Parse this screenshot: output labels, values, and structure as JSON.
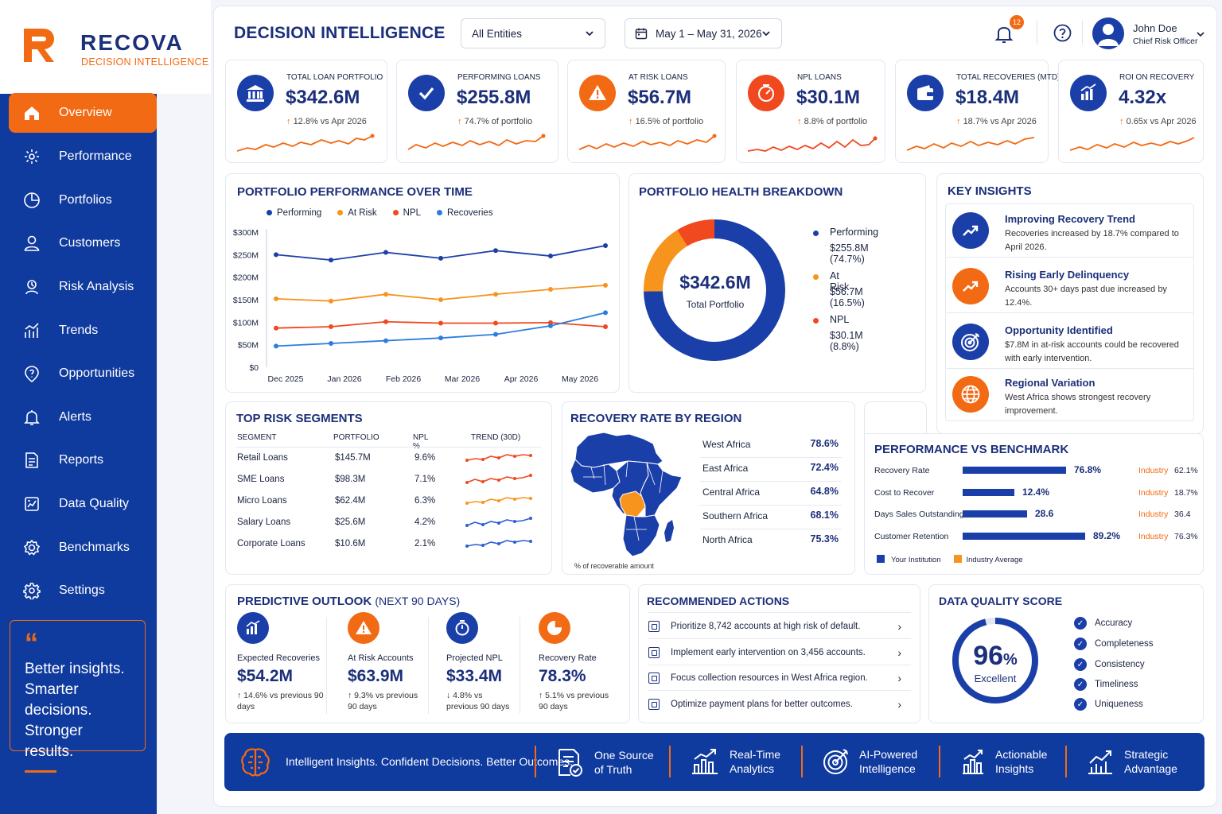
{
  "brand": {
    "name": "RECOVA",
    "subtitle": "DECISION INTELLIGENCE"
  },
  "nav": [
    {
      "label": "Overview",
      "icon": "home-icon",
      "active": true
    },
    {
      "label": "Performance",
      "icon": "performance-icon"
    },
    {
      "label": "Portfolios",
      "icon": "pie-icon"
    },
    {
      "label": "Customers",
      "icon": "user-icon"
    },
    {
      "label": "Risk Analysis",
      "icon": "risk-icon"
    },
    {
      "label": "Trends",
      "icon": "trends-icon"
    },
    {
      "label": "Opportunities",
      "icon": "opportunity-icon"
    },
    {
      "label": "Alerts",
      "icon": "bell-icon"
    },
    {
      "label": "Reports",
      "icon": "report-icon"
    },
    {
      "label": "Data Quality",
      "icon": "data-quality-icon"
    },
    {
      "label": "Benchmarks",
      "icon": "benchmark-icon"
    },
    {
      "label": "Settings",
      "icon": "gear-icon"
    }
  ],
  "quote": {
    "mark": "“",
    "text": [
      "Better insights.",
      "Smarter decisions.",
      "Stronger results."
    ]
  },
  "header": {
    "title": "DECISION INTELLIGENCE",
    "entity_select": "All Entities",
    "date_range": "May 1 – May 31, 2026",
    "notifications": "12",
    "user_name": "John Doe",
    "user_role": "Chief Risk Officer"
  },
  "kpis": [
    {
      "label": "TOTAL LOAN PORTFOLIO",
      "value": "$342.6M",
      "change": "12.8% vs Apr 2026",
      "icon": "bank-icon",
      "color": "#1b3fa8"
    },
    {
      "label": "PERFORMING LOANS",
      "value": "$255.8M",
      "change": "74.7% of portfolio",
      "icon": "check-icon",
      "color": "#1b3fa8"
    },
    {
      "label": "AT RISK LOANS",
      "value": "$56.7M",
      "change": "16.5% of portfolio",
      "icon": "warning-icon",
      "color": "#f26a14"
    },
    {
      "label": "NPL LOANS",
      "value": "$30.1M",
      "change": "8.8% of portfolio",
      "icon": "gauge-icon",
      "color": "#f0481f"
    },
    {
      "label": "TOTAL RECOVERIES (MTD)",
      "value": "$18.4M",
      "change": "18.7% vs Apr 2026",
      "icon": "wallet-icon",
      "color": "#1b3fa8"
    },
    {
      "label": "ROI ON RECOVERY",
      "value": "4.32x",
      "change": "0.65x vs Apr 2026",
      "icon": "bar-chart-icon",
      "color": "#1b3fa8"
    }
  ],
  "performance": {
    "title": "PORTFOLIO PERFORMANCE OVER TIME",
    "legend": [
      "Performing",
      "At Risk",
      "NPL",
      "Recoveries"
    ]
  },
  "chart_data": {
    "type": "line",
    "categories": [
      "Dec 2025",
      "Jan 2026",
      "Feb 2026",
      "Mar 2026",
      "Apr 2026",
      "May 2026"
    ],
    "x": [
      "Dec 2025",
      "Dec/Jan 2026",
      "Jan/Feb 2026",
      "Feb/Mar 2026",
      "Mar/Apr 2026",
      "Apr/May 2026",
      "May 2026"
    ],
    "series": [
      {
        "name": "Performing",
        "color": "#1b3fa8",
        "values": [
          250,
          238,
          255,
          242,
          259,
          247,
          270
        ]
      },
      {
        "name": "At Risk",
        "color": "#f7941d",
        "values": [
          152,
          147,
          162,
          150,
          162,
          173,
          182
        ]
      },
      {
        "name": "NPL",
        "color": "#f0481f",
        "values": [
          87,
          90,
          101,
          98,
          98,
          99,
          90
        ]
      },
      {
        "name": "Recoveries",
        "color": "#2b7de0",
        "values": [
          47,
          53,
          59,
          65,
          73,
          92,
          121
        ]
      }
    ],
    "yticks": [
      "$0",
      "$50M",
      "$100M",
      "$150M",
      "$200M",
      "$250M",
      "$300M"
    ],
    "ylim": [
      0,
      300
    ]
  },
  "health": {
    "title": "PORTFOLIO HEALTH BREAKDOWN",
    "center_value": "$342.6M",
    "center_label": "Total Portfolio",
    "segments": [
      {
        "name": "Performing",
        "value": "$255.8M (74.7%)",
        "pct": 74.7,
        "color": "#1b3fa8"
      },
      {
        "name": "At Risk",
        "value": "$56.7M (16.5%)",
        "pct": 16.5,
        "color": "#f7941d"
      },
      {
        "name": "NPL",
        "value": "$30.1M (8.8%)",
        "pct": 8.8,
        "color": "#f0481f"
      }
    ]
  },
  "insights": {
    "title": "KEY INSIGHTS",
    "items": [
      {
        "title": "Improving Recovery Trend",
        "desc": "Recoveries increased by 18.7% compared to April 2026.",
        "icon": "trend-up-icon",
        "color": "#1b3fa8"
      },
      {
        "title": "Rising Early Delinquency",
        "desc": "Accounts 30+ days past due increased by 12.4%.",
        "icon": "trend-up-icon",
        "color": "#f26a14"
      },
      {
        "title": "Opportunity Identified",
        "desc": "$7.8M in at-risk accounts could be recovered with early intervention.",
        "icon": "target-icon",
        "color": "#1b3fa8"
      },
      {
        "title": "Regional Variation",
        "desc": "West Africa shows strongest recovery improvement.",
        "icon": "globe-icon",
        "color": "#f26a14"
      }
    ]
  },
  "segments": {
    "title": "TOP RISK SEGMENTS",
    "headers": [
      "SEGMENT",
      "PORTFOLIO",
      "NPL %",
      "TREND (30D)"
    ],
    "rows": [
      {
        "name": "Retail Loans",
        "portfolio": "$145.7M",
        "npl": "9.6%",
        "color": "#f0481f"
      },
      {
        "name": "SME Loans",
        "portfolio": "$98.3M",
        "npl": "7.1%",
        "color": "#f0481f"
      },
      {
        "name": "Micro Loans",
        "portfolio": "$62.4M",
        "npl": "6.3%",
        "color": "#f7941d"
      },
      {
        "name": "Salary Loans",
        "portfolio": "$25.6M",
        "npl": "4.2%",
        "color": "#2b5fd0"
      },
      {
        "name": "Corporate Loans",
        "portfolio": "$10.6M",
        "npl": "2.1%",
        "color": "#2b5fd0"
      }
    ]
  },
  "recovery": {
    "title": "RECOVERY RATE BY REGION",
    "note": "% of recoverable amount",
    "regions": [
      {
        "name": "West Africa",
        "value": "78.6%"
      },
      {
        "name": "East Africa",
        "value": "72.4%"
      },
      {
        "name": "Central Africa",
        "value": "64.8%"
      },
      {
        "name": "Southern Africa",
        "value": "68.1%"
      },
      {
        "name": "North Africa",
        "value": "75.3%"
      }
    ]
  },
  "benchmark": {
    "title": "PERFORMANCE VS BENCHMARK",
    "industry_label": "Industry",
    "rows": [
      {
        "name": "Recovery Rate",
        "value": "76.8%",
        "industry": "62.1%",
        "fill": 0.8
      },
      {
        "name": "Cost to Recover",
        "value": "12.4%",
        "industry": "18.7%",
        "fill": 0.4
      },
      {
        "name": "Days Sales Outstanding",
        "value": "28.6",
        "industry": "36.4",
        "fill": 0.5
      },
      {
        "name": "Customer Retention",
        "value": "89.2%",
        "industry": "76.3%",
        "fill": 0.95
      }
    ],
    "legend": [
      "Your Institution",
      "Industry Average"
    ]
  },
  "predictive": {
    "title": "PREDICTIVE OUTLOOK",
    "title_suffix": "(NEXT 90 DAYS)",
    "items": [
      {
        "label": "Expected Recoveries",
        "value": "$54.2M",
        "change": "↑ 14.6% vs previous 90 days",
        "icon": "bar-chart-icon",
        "color": "#1b3fa8"
      },
      {
        "label": "At Risk Accounts",
        "value": "$63.9M",
        "change": "↑ 9.3% vs previous 90 days",
        "icon": "warning-icon",
        "color": "#f26a14"
      },
      {
        "label": "Projected NPL",
        "value": "$33.4M",
        "change": "↓ 4.8% vs previous 90 days",
        "icon": "stopwatch-icon",
        "color": "#1b3fa8"
      },
      {
        "label": "Recovery Rate",
        "value": "78.3%",
        "change": "↑ 5.1% vs previous 90 days",
        "icon": "pie-icon",
        "color": "#f26a14"
      }
    ]
  },
  "actions": {
    "title": "RECOMMENDED ACTIONS",
    "items": [
      "Prioritize 8,742 accounts at high risk of default.",
      "Implement early intervention on 3,456 accounts.",
      "Focus collection resources in West Africa region.",
      "Optimize payment plans for better outcomes."
    ]
  },
  "quality": {
    "title": "DATA QUALITY SCORE",
    "score": "96",
    "unit": "%",
    "rating": "Excellent",
    "score_value": 96,
    "items": [
      "Accuracy",
      "Completeness",
      "Consistency",
      "Timeliness",
      "Uniqueness"
    ]
  },
  "footer": {
    "tagline": "Intelligent Insights. Confident Decisions. Better Outcomes.",
    "features": [
      {
        "line1": "One Source",
        "line2": "of Truth",
        "icon": "document-check-icon"
      },
      {
        "line1": "Real-Time",
        "line2": "Analytics",
        "icon": "analytics-icon"
      },
      {
        "line1": "AI-Powered",
        "line2": "Intelligence",
        "icon": "ai-target-icon"
      },
      {
        "line1": "Actionable",
        "line2": "Insights",
        "icon": "insights-icon"
      },
      {
        "line1": "Strategic",
        "line2": "Advantage",
        "icon": "strategy-icon"
      }
    ]
  }
}
